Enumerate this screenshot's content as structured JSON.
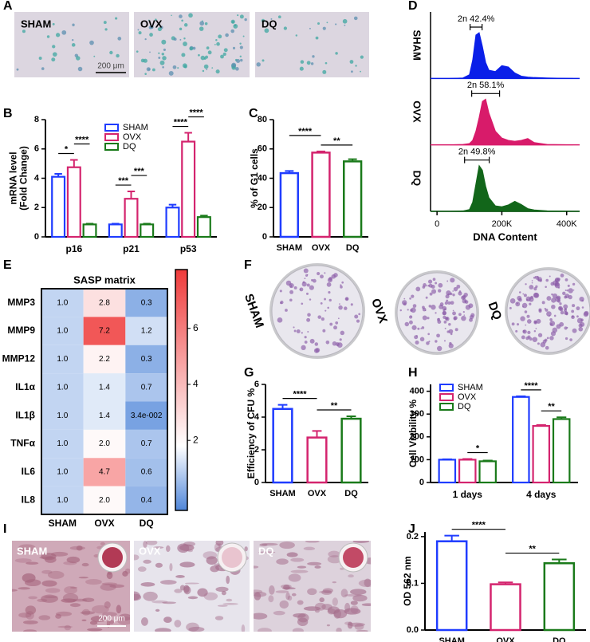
{
  "panel_labels": [
    "A",
    "B",
    "C",
    "D",
    "E",
    "F",
    "G",
    "H",
    "I",
    "J"
  ],
  "images": [
    {
      "labels": [
        "SHAM",
        "OVX",
        "DQ"
      ],
      "scale_bar": "200 μm"
    },
    {
      "labels": [
        "SHAM",
        "OVX",
        "DQ"
      ]
    },
    {
      "labels": [
        "SHAM",
        "OVX",
        "DQ"
      ],
      "scale_bar": "200 μm"
    }
  ],
  "chart_data": [
    {
      "type": "grouped-bar",
      "ylabel": [
        "mRNA level",
        "(Fold Change)"
      ],
      "categories": [
        "p16",
        "p21",
        "p53"
      ],
      "series": [
        {
          "name": "SHAM",
          "color": "#1f3cff",
          "values": [
            4.1,
            0.85,
            2.0
          ],
          "errors": [
            0.2,
            0.05,
            0.2
          ]
        },
        {
          "name": "OVX",
          "color": "#d4246e",
          "values": [
            4.75,
            2.6,
            6.5
          ],
          "errors": [
            0.5,
            0.5,
            0.6
          ]
        },
        {
          "name": "DQ",
          "color": "#1a7a1a",
          "values": [
            0.85,
            0.85,
            1.35
          ],
          "errors": [
            0.05,
            0.05,
            0.1
          ]
        }
      ],
      "ylim": [
        0,
        8
      ],
      "yticks": [
        0,
        2,
        4,
        6,
        8
      ],
      "significance": [
        {
          "label": "*",
          "category": 0,
          "from": 0,
          "to": 1
        },
        {
          "label": "****",
          "category": 0,
          "from": 1,
          "to": 2
        },
        {
          "label": "***",
          "category": 1,
          "from": 0,
          "to": 1
        },
        {
          "label": "***",
          "category": 1,
          "from": 1,
          "to": 2
        },
        {
          "label": "****",
          "category": 2,
          "from": 0,
          "to": 1
        },
        {
          "label": "****",
          "category": 2,
          "from": 1,
          "to": 2
        }
      ]
    },
    {
      "type": "bar",
      "ylabel": "% of G1 cells",
      "categories": [
        "SHAM",
        "OVX",
        "DQ"
      ],
      "values": [
        43.5,
        57.5,
        51.5
      ],
      "errors": [
        1.5,
        0.8,
        1.5
      ],
      "colors": [
        "#1f3cff",
        "#d4246e",
        "#1a7a1a"
      ],
      "ylim": [
        0,
        80
      ],
      "yticks": [
        0,
        20,
        40,
        60,
        80
      ],
      "significance": [
        {
          "label": "**",
          "from": 1,
          "to": 2
        },
        {
          "label": "****",
          "from": 0,
          "to": 1
        }
      ]
    },
    {
      "type": "area",
      "xlabel": "DNA Content",
      "x": [
        40000,
        80000,
        100000,
        110000,
        120000,
        130000,
        140000,
        150000,
        160000,
        180000,
        200000,
        220000,
        240000,
        260000,
        280000,
        300000,
        340000,
        420000
      ],
      "xlim": [
        -20000,
        440000
      ],
      "xticks": [
        0,
        {
          "value": 200000,
          "label": "200K"
        },
        {
          "value": 400000,
          "label": "400K"
        }
      ],
      "ylim": [
        0,
        100
      ],
      "series": [
        {
          "name": "SHAM",
          "color": "#0a1fe8",
          "values": [
            0,
            1,
            8,
            40,
            95,
            100,
            70,
            35,
            18,
            15,
            28,
            25,
            12,
            5,
            3,
            2,
            1,
            0
          ],
          "gate": [
            102000,
            139000
          ],
          "gate_label": "2n 42.4%"
        },
        {
          "name": "OVX",
          "color": "#d81b6a",
          "values": [
            0,
            1,
            3,
            10,
            30,
            60,
            95,
            100,
            70,
            30,
            15,
            10,
            8,
            10,
            14,
            5,
            1,
            0
          ],
          "gate": [
            107000,
            193000
          ],
          "gate_label": "2n 58.1%"
        },
        {
          "name": "DQ",
          "color": "#12661a",
          "values": [
            0,
            1,
            4,
            20,
            60,
            100,
            90,
            55,
            30,
            12,
            10,
            14,
            22,
            15,
            6,
            3,
            1,
            0
          ],
          "gate": [
            85000,
            161000
          ],
          "gate_label": "2n 49.8%"
        }
      ]
    },
    {
      "type": "heatmap",
      "title": "SASP matrix",
      "rows": [
        "MMP3",
        "MMP9",
        "MMP12",
        "IL1α",
        "IL1β",
        "TNFα",
        "IL6",
        "IL8"
      ],
      "columns": [
        "SHAM",
        "OVX",
        "DQ"
      ],
      "values": [
        [
          1.0,
          2.8,
          0.3
        ],
        [
          1.0,
          7.2,
          1.2
        ],
        [
          1.0,
          2.2,
          0.3
        ],
        [
          1.0,
          1.4,
          0.7
        ],
        [
          1.0,
          1.4,
          0.034
        ],
        [
          1.0,
          2.0,
          0.7
        ],
        [
          1.0,
          4.7,
          0.6
        ],
        [
          1.0,
          2.0,
          0.4
        ]
      ],
      "value_labels": [
        [
          "1.0",
          "2.8",
          "0.3"
        ],
        [
          "1.0",
          "7.2",
          "1.2"
        ],
        [
          "1.0",
          "2.2",
          "0.3"
        ],
        [
          "1.0",
          "1.4",
          "0.7"
        ],
        [
          "1.0",
          "1.4",
          "3.4e-002"
        ],
        [
          "1.0",
          "2.0",
          "0.7"
        ],
        [
          "1.0",
          "4.7",
          "0.6"
        ],
        [
          "1.0",
          "2.0",
          "0.4"
        ]
      ],
      "zlim": [
        -0.5,
        8.1
      ],
      "zticks": [
        2,
        4,
        6
      ],
      "colormap": {
        "low": "#4f86d9",
        "mid": "#ffffff",
        "high": "#ef3b3b",
        "center": 1.8
      }
    },
    {
      "type": "bar",
      "ylabel": "Efficiency of CFU %",
      "categories": [
        "SHAM",
        "OVX",
        "DQ"
      ],
      "values": [
        4.5,
        2.75,
        3.9
      ],
      "errors": [
        0.25,
        0.4,
        0.15
      ],
      "colors": [
        "#1f3cff",
        "#d4246e",
        "#1a7a1a"
      ],
      "ylim": [
        0,
        6
      ],
      "yticks": [
        0,
        2,
        4,
        6
      ],
      "significance": [
        {
          "label": "**",
          "from": 1,
          "to": 2
        },
        {
          "label": "****",
          "from": 0,
          "to": 1
        }
      ]
    },
    {
      "type": "grouped-bar",
      "ylabel": "Cell Viability %",
      "categories": [
        "1 days",
        "4 days"
      ],
      "series": [
        {
          "name": "SHAM",
          "color": "#1f3cff",
          "values": [
            100,
            375
          ],
          "errors": [
            2,
            3
          ]
        },
        {
          "name": "OVX",
          "color": "#d4246e",
          "values": [
            100,
            248
          ],
          "errors": [
            3,
            4
          ]
        },
        {
          "name": "DQ",
          "color": "#1a7a1a",
          "values": [
            93,
            278
          ],
          "errors": [
            3,
            8
          ]
        }
      ],
      "ylim": [
        0,
        430
      ],
      "yticks": [
        0,
        100,
        200,
        300,
        400
      ],
      "significance": [
        {
          "label": "*",
          "category": 0,
          "from": 1,
          "to": 2
        },
        {
          "label": "**",
          "category": 1,
          "from": 1,
          "to": 2
        },
        {
          "label": "****",
          "category": 1,
          "from": 0,
          "to": 1
        }
      ]
    },
    {
      "type": "bar",
      "ylabel": "OD 562 nm",
      "categories": [
        "SHAM",
        "OVX",
        "DQ"
      ],
      "values": [
        0.19,
        0.098,
        0.143
      ],
      "errors": [
        0.012,
        0.004,
        0.008
      ],
      "colors": [
        "#1f3cff",
        "#d4246e",
        "#1a7a1a"
      ],
      "ylim": [
        0,
        0.21
      ],
      "yticks": [
        {
          "value": 0,
          "label": "0.0"
        },
        0.1,
        0.2
      ],
      "significance": [
        {
          "label": "**",
          "from": 1,
          "to": 2
        },
        {
          "label": "****",
          "from": 0,
          "to": 1
        }
      ]
    }
  ]
}
